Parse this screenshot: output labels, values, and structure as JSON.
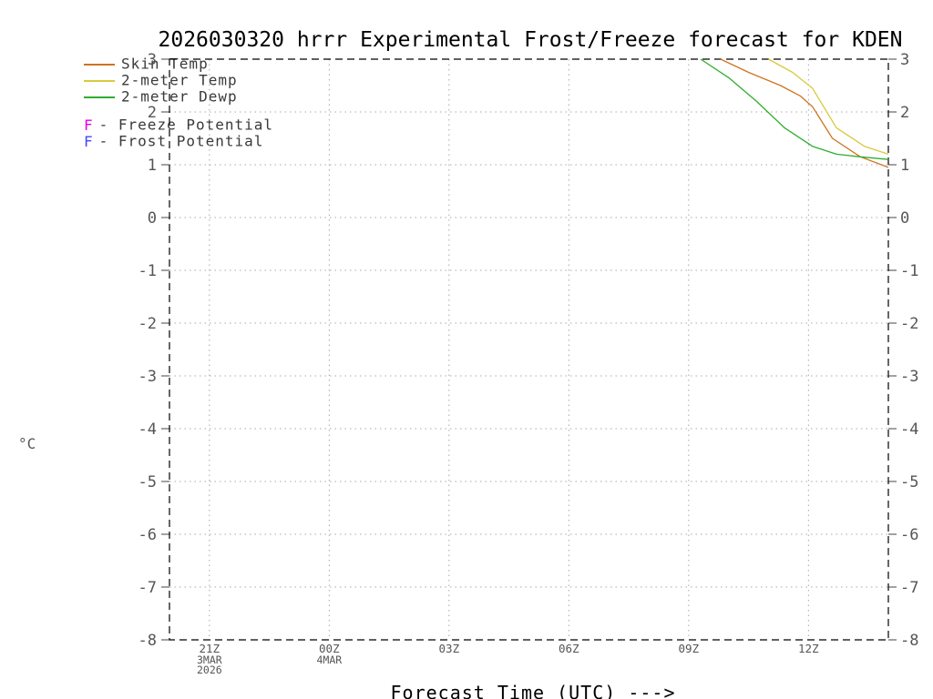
{
  "title": "2026030320 hrrr Experimental Frost/Freeze forecast for KDEN",
  "legend": {
    "series": [
      {
        "label": "Skin Temp",
        "color": "#cf7320"
      },
      {
        "label": "2-meter Temp",
        "color": "#d9c93d"
      },
      {
        "label": "2-meter Dewp",
        "color": "#2fae2f"
      }
    ],
    "potentials": [
      {
        "symbol": "F",
        "label": "- Freeze Potential",
        "color": "#e800e8"
      },
      {
        "symbol": "F",
        "label": "- Frost Potential",
        "color": "#4646ff"
      }
    ]
  },
  "chart_data": {
    "type": "line",
    "title": "2026030320 hrrr Experimental Frost/Freeze forecast for KDEN",
    "ylabel": "°C",
    "xlabel": "Forecast Time (UTC) --->",
    "ylim": [
      -8,
      3
    ],
    "y_tick_step": 1,
    "x_unit": "hours since 2026-03-03 20Z",
    "xlim": [
      0,
      18
    ],
    "x_ticks": [
      {
        "h": 1,
        "label": "21Z",
        "sub": [
          "3MAR",
          "2026"
        ]
      },
      {
        "h": 4,
        "label": "00Z",
        "sub": [
          "4MAR"
        ]
      },
      {
        "h": 7,
        "label": "03Z",
        "sub": []
      },
      {
        "h": 10,
        "label": "06Z",
        "sub": []
      },
      {
        "h": 13,
        "label": "09Z",
        "sub": []
      },
      {
        "h": 16,
        "label": "12Z",
        "sub": []
      }
    ],
    "grid": true,
    "legend_position": "top-left",
    "series": [
      {
        "name": "Skin Temp",
        "color": "#cf7320",
        "points": [
          [
            13.8,
            3.0
          ],
          [
            14.5,
            2.75
          ],
          [
            15.3,
            2.5
          ],
          [
            15.8,
            2.3
          ],
          [
            16.1,
            2.1
          ],
          [
            16.6,
            1.5
          ],
          [
            17.3,
            1.15
          ],
          [
            18.0,
            0.95
          ]
        ]
      },
      {
        "name": "2-meter Temp",
        "color": "#d9c93d",
        "points": [
          [
            15.0,
            3.0
          ],
          [
            15.6,
            2.75
          ],
          [
            16.1,
            2.45
          ],
          [
            16.7,
            1.7
          ],
          [
            17.4,
            1.35
          ],
          [
            18.0,
            1.2
          ]
        ]
      },
      {
        "name": "2-meter Dewp",
        "color": "#2fae2f",
        "points": [
          [
            13.3,
            3.0
          ],
          [
            14.0,
            2.65
          ],
          [
            14.7,
            2.2
          ],
          [
            15.4,
            1.7
          ],
          [
            16.1,
            1.35
          ],
          [
            16.7,
            1.2
          ],
          [
            17.3,
            1.15
          ],
          [
            18.0,
            1.1
          ]
        ]
      }
    ]
  }
}
